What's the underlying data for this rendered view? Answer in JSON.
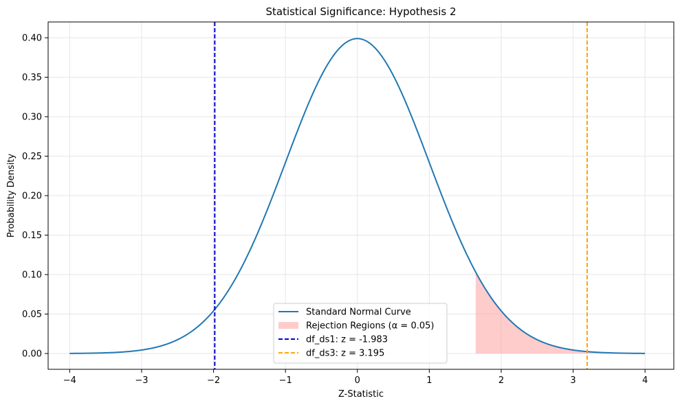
{
  "chart_data": {
    "type": "line",
    "title": "Statistical Significance: Hypothesis 2",
    "xlabel": "Z-Statistic",
    "ylabel": "Probability Density",
    "xlim": [
      -4.3,
      4.4
    ],
    "ylim": [
      -0.02,
      0.42
    ],
    "xticks": [
      -4,
      -3,
      -2,
      -1,
      0,
      1,
      2,
      3,
      4
    ],
    "yticks": [
      0.0,
      0.05,
      0.1,
      0.15,
      0.2,
      0.25,
      0.3,
      0.35,
      0.4
    ],
    "ytick_labels": [
      "0.00",
      "0.05",
      "0.10",
      "0.15",
      "0.20",
      "0.25",
      "0.30",
      "0.35",
      "0.40"
    ],
    "xtick_labels": [
      "−4",
      "−3",
      "−2",
      "−1",
      "0",
      "1",
      "2",
      "3",
      "4"
    ],
    "grid": true,
    "legend_placement": "lower-center",
    "curve": {
      "name": "Standard Normal Curve",
      "distribution": "standard normal",
      "x_range": [
        -4,
        4
      ],
      "color": "#1f77b4"
    },
    "rejection_region": {
      "name": "Rejection Regions (α = 0.05)",
      "x_start": 1.645,
      "x_end": 4,
      "color": "#ff9999"
    },
    "vlines": [
      {
        "name": "df_ds1: z = -1.983",
        "x": -1.983,
        "color": "#0000cc"
      },
      {
        "name": "df_ds3: z = 3.195",
        "x": 3.195,
        "color": "#ffa500"
      }
    ]
  }
}
